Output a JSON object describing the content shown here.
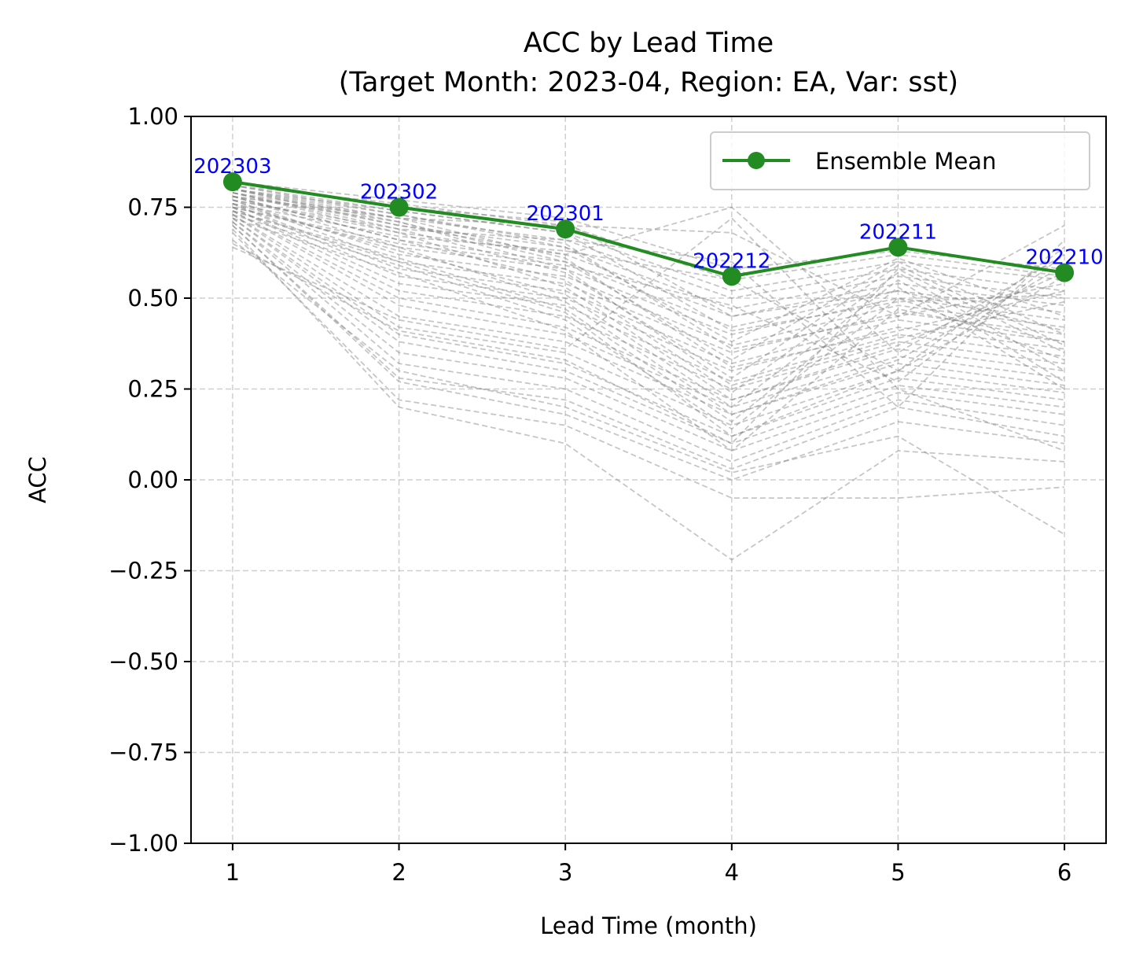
{
  "chart_data": {
    "type": "line",
    "title_line1": "ACC by Lead Time",
    "title_line2": "(Target Month: 2023-04, Region: EA, Var: sst)",
    "xlabel": "Lead Time (month)",
    "ylabel": "ACC",
    "x": [
      1,
      2,
      3,
      4,
      5,
      6
    ],
    "xlim": [
      0.75,
      6.25
    ],
    "ylim": [
      -1.0,
      1.0
    ],
    "x_ticks": [
      "1",
      "2",
      "3",
      "4",
      "5",
      "6"
    ],
    "y_ticks": [
      1.0,
      0.75,
      0.5,
      0.25,
      0.0,
      -0.25,
      -0.5,
      -0.75,
      -1.0
    ],
    "y_tick_labels": [
      "1.00",
      "0.75",
      "0.50",
      "0.25",
      "0.00",
      "−0.25",
      "−0.50",
      "−0.75",
      "−1.00"
    ],
    "grid": true,
    "legend_position": "top-right",
    "mean_series": {
      "name": "Ensemble Mean",
      "color": "#228b22",
      "values": [
        0.82,
        0.75,
        0.69,
        0.56,
        0.64,
        0.57
      ],
      "point_labels": [
        "202303",
        "202302",
        "202301",
        "202212",
        "202211",
        "202210"
      ]
    },
    "member_color": "#808080",
    "members": [
      [
        0.82,
        0.77,
        0.72,
        0.58,
        0.63,
        0.58
      ],
      [
        0.81,
        0.76,
        0.7,
        0.55,
        0.62,
        0.56
      ],
      [
        0.8,
        0.74,
        0.68,
        0.52,
        0.6,
        0.55
      ],
      [
        0.8,
        0.72,
        0.66,
        0.5,
        0.58,
        0.52
      ],
      [
        0.79,
        0.7,
        0.64,
        0.47,
        0.56,
        0.5
      ],
      [
        0.79,
        0.68,
        0.62,
        0.45,
        0.54,
        0.48
      ],
      [
        0.78,
        0.66,
        0.6,
        0.42,
        0.52,
        0.46
      ],
      [
        0.78,
        0.64,
        0.58,
        0.4,
        0.5,
        0.44
      ],
      [
        0.77,
        0.62,
        0.56,
        0.37,
        0.48,
        0.42
      ],
      [
        0.77,
        0.6,
        0.54,
        0.35,
        0.46,
        0.4
      ],
      [
        0.76,
        0.58,
        0.52,
        0.32,
        0.44,
        0.38
      ],
      [
        0.76,
        0.56,
        0.5,
        0.3,
        0.42,
        0.36
      ],
      [
        0.75,
        0.54,
        0.48,
        0.27,
        0.4,
        0.34
      ],
      [
        0.75,
        0.52,
        0.45,
        0.25,
        0.38,
        0.32
      ],
      [
        0.74,
        0.5,
        0.42,
        0.22,
        0.36,
        0.3
      ],
      [
        0.74,
        0.48,
        0.4,
        0.2,
        0.34,
        0.28
      ],
      [
        0.73,
        0.45,
        0.38,
        0.18,
        0.32,
        0.26
      ],
      [
        0.73,
        0.42,
        0.35,
        0.15,
        0.3,
        0.24
      ],
      [
        0.72,
        0.4,
        0.32,
        0.12,
        0.28,
        0.22
      ],
      [
        0.72,
        0.38,
        0.3,
        0.1,
        0.26,
        0.2
      ],
      [
        0.71,
        0.35,
        0.28,
        0.08,
        0.24,
        0.18
      ],
      [
        0.71,
        0.32,
        0.25,
        0.05,
        0.22,
        0.15
      ],
      [
        0.7,
        0.28,
        0.22,
        0.03,
        0.2,
        0.12
      ],
      [
        0.7,
        0.27,
        0.18,
        0.0,
        0.16,
        0.1
      ],
      [
        0.69,
        0.2,
        0.1,
        -0.22,
        0.08,
        0.05
      ],
      [
        0.68,
        0.22,
        0.15,
        -0.05,
        -0.05,
        -0.02
      ],
      [
        0.66,
        0.3,
        0.2,
        0.02,
        0.12,
        -0.15
      ],
      [
        0.65,
        0.41,
        0.33,
        0.1,
        0.58,
        0.35
      ],
      [
        0.64,
        0.44,
        0.36,
        0.72,
        0.25,
        0.08
      ],
      [
        0.8,
        0.7,
        0.62,
        0.75,
        0.35,
        0.62
      ],
      [
        0.78,
        0.72,
        0.7,
        0.68,
        0.45,
        0.7
      ],
      [
        0.77,
        0.69,
        0.66,
        0.6,
        0.2,
        0.66
      ],
      [
        0.76,
        0.67,
        0.63,
        0.55,
        0.3,
        0.64
      ],
      [
        0.75,
        0.65,
        0.59,
        0.48,
        0.27,
        0.62
      ],
      [
        0.81,
        0.73,
        0.64,
        0.38,
        0.61,
        0.45
      ],
      [
        0.8,
        0.71,
        0.6,
        0.33,
        0.6,
        0.4
      ],
      [
        0.79,
        0.69,
        0.57,
        0.28,
        0.59,
        0.37
      ],
      [
        0.78,
        0.66,
        0.55,
        0.24,
        0.57,
        0.3
      ],
      [
        0.76,
        0.63,
        0.51,
        0.2,
        0.55,
        0.27
      ],
      [
        0.74,
        0.61,
        0.47,
        0.16,
        0.53,
        0.25
      ],
      [
        0.73,
        0.59,
        0.44,
        0.14,
        0.5,
        0.33
      ],
      [
        0.72,
        0.57,
        0.41,
        0.08,
        0.47,
        0.38
      ],
      [
        0.82,
        0.75,
        0.71,
        0.45,
        0.52,
        0.41
      ],
      [
        0.81,
        0.74,
        0.68,
        0.41,
        0.49,
        0.51
      ],
      [
        0.8,
        0.73,
        0.65,
        0.36,
        0.45,
        0.54
      ],
      [
        0.79,
        0.72,
        0.61,
        0.31,
        0.41,
        0.52
      ],
      [
        0.78,
        0.71,
        0.58,
        0.26,
        0.39,
        0.49
      ],
      [
        0.77,
        0.68,
        0.53,
        0.22,
        0.37,
        0.57
      ],
      [
        0.75,
        0.64,
        0.49,
        0.18,
        0.33,
        0.59
      ],
      [
        0.74,
        0.6,
        0.46,
        0.12,
        0.3,
        0.56
      ]
    ]
  }
}
